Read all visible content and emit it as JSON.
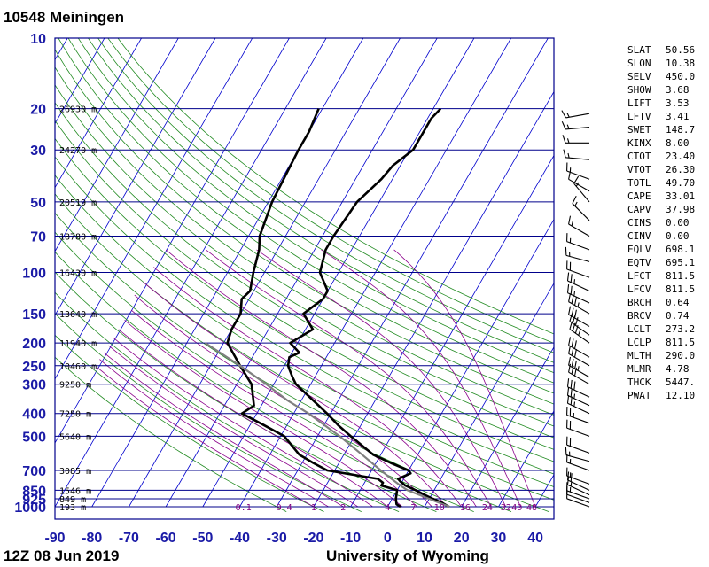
{
  "header": {
    "station": "10548  Meiningen"
  },
  "footer": {
    "time": "12Z 08 Jun 2019",
    "source": "University of Wyoming"
  },
  "indices": [
    {
      "k": "SLAT",
      "v": "50.56"
    },
    {
      "k": "SLON",
      "v": "10.38"
    },
    {
      "k": "SELV",
      "v": "450.0"
    },
    {
      "k": "SHOW",
      "v": "3.68"
    },
    {
      "k": "LIFT",
      "v": "3.53"
    },
    {
      "k": "LFTV",
      "v": "3.41"
    },
    {
      "k": "SWET",
      "v": "148.7"
    },
    {
      "k": "KINX",
      "v": "8.00"
    },
    {
      "k": "CTOT",
      "v": "23.40"
    },
    {
      "k": "VTOT",
      "v": "26.30"
    },
    {
      "k": "TOTL",
      "v": "49.70"
    },
    {
      "k": "CAPE",
      "v": "33.01"
    },
    {
      "k": "CAPV",
      "v": "37.98"
    },
    {
      "k": "CINS",
      "v": "0.00"
    },
    {
      "k": "CINV",
      "v": "0.00"
    },
    {
      "k": "EQLV",
      "v": "698.1"
    },
    {
      "k": "EQTV",
      "v": "695.1"
    },
    {
      "k": "LFCT",
      "v": "811.5"
    },
    {
      "k": "LFCV",
      "v": "811.5"
    },
    {
      "k": "BRCH",
      "v": "0.64"
    },
    {
      "k": "BRCV",
      "v": "0.74"
    },
    {
      "k": "LCLT",
      "v": "273.2"
    },
    {
      "k": "LCLP",
      "v": "811.5"
    },
    {
      "k": "MLTH",
      "v": "290.0"
    },
    {
      "k": "MLMR",
      "v": "4.78"
    },
    {
      "k": "THCK",
      "v": "5447."
    },
    {
      "k": "PWAT",
      "v": "12.10"
    }
  ],
  "colors": {
    "grid": "#00008b",
    "isotherm": "#0000cd",
    "dry_adiabat": "#228b22",
    "moist_adiabat": "#8b008b",
    "parcel": "#808080",
    "profile": "#000000"
  },
  "chart_data": {
    "type": "line",
    "title": "",
    "xlabel": "",
    "ylabel": "",
    "xlim": [
      -90,
      45
    ],
    "ylim": [
      1000,
      10
    ],
    "y_scale": "log",
    "x_ticks": [
      -90,
      -80,
      -70,
      -60,
      -50,
      -40,
      -30,
      -20,
      -10,
      0,
      10,
      20,
      30,
      40
    ],
    "x_tick_labels": [
      "-90",
      "-80",
      "-70",
      "-60",
      "-50",
      "-40",
      "-30",
      "-20",
      "-10",
      "0",
      "10",
      "20",
      "30",
      "40"
    ],
    "pressure_levels": [
      10,
      20,
      30,
      50,
      70,
      100,
      150,
      200,
      250,
      300,
      400,
      500,
      700,
      850,
      925,
      1000
    ],
    "pressure_labels": [
      "10",
      "20",
      "30",
      "50",
      "70",
      "100",
      "150",
      "200",
      "250",
      "300",
      "400",
      "500",
      "700",
      "850",
      "925",
      "1000"
    ],
    "height_labels": [
      {
        "p": 20,
        "label": "26930 m"
      },
      {
        "p": 30,
        "label": "24270 m"
      },
      {
        "p": 50,
        "label": "20519 m"
      },
      {
        "p": 70,
        "label": "18780 m"
      },
      {
        "p": 100,
        "label": "16430 m"
      },
      {
        "p": 150,
        "label": "13640 m"
      },
      {
        "p": 200,
        "label": "11940 m"
      },
      {
        "p": 250,
        "label": "10460 m"
      },
      {
        "p": 300,
        "label": "9250 m"
      },
      {
        "p": 400,
        "label": "7250 m"
      },
      {
        "p": 500,
        "label": "5640 m"
      },
      {
        "p": 700,
        "label": "3085 m"
      },
      {
        "p": 850,
        "label": "1546 m"
      },
      {
        "p": 925,
        "label": "849 m"
      },
      {
        "p": 1000,
        "label": "193 m"
      }
    ],
    "mixing_ratio_labels": [
      {
        "t": -39,
        "label": "0.1"
      },
      {
        "t": -28,
        "label": "0.4"
      },
      {
        "t": -20,
        "label": "1"
      },
      {
        "t": -12,
        "label": "2"
      },
      {
        "t": 0,
        "label": "4"
      },
      {
        "t": 7,
        "label": "7"
      },
      {
        "t": 14,
        "label": "10"
      },
      {
        "t": 21,
        "label": "16"
      },
      {
        "t": 27,
        "label": "24"
      },
      {
        "t": 32,
        "label": "32"
      },
      {
        "t": 35,
        "label": "40"
      },
      {
        "t": 39,
        "label": "48"
      }
    ],
    "series": [
      {
        "role": "temperature",
        "points": [
          {
            "p": 1000,
            "t": 16.6
          },
          {
            "p": 975,
            "t": 15
          },
          {
            "p": 960,
            "t": 14
          },
          {
            "p": 925,
            "t": 11
          },
          {
            "p": 900,
            "t": 9
          },
          {
            "p": 875,
            "t": 7
          },
          {
            "p": 850,
            "t": 5
          },
          {
            "p": 812,
            "t": 1.5
          },
          {
            "p": 780,
            "t": -0.5
          },
          {
            "p": 760,
            "t": -1.5
          },
          {
            "p": 720,
            "t": 1
          },
          {
            "p": 700,
            "t": 0
          },
          {
            "p": 650,
            "t": -6
          },
          {
            "p": 600,
            "t": -12
          },
          {
            "p": 500,
            "t": -21
          },
          {
            "p": 450,
            "t": -26
          },
          {
            "p": 400,
            "t": -31
          },
          {
            "p": 350,
            "t": -37
          },
          {
            "p": 300,
            "t": -44
          },
          {
            "p": 280,
            "t": -46
          },
          {
            "p": 260,
            "t": -48
          },
          {
            "p": 250,
            "t": -49
          },
          {
            "p": 230,
            "t": -50
          },
          {
            "p": 220,
            "t": -48
          },
          {
            "p": 200,
            "t": -52
          },
          {
            "p": 175,
            "t": -48
          },
          {
            "p": 150,
            "t": -53
          },
          {
            "p": 130,
            "t": -50
          },
          {
            "p": 120,
            "t": -50
          },
          {
            "p": 100,
            "t": -55
          },
          {
            "p": 80,
            "t": -57
          },
          {
            "p": 70,
            "t": -57
          },
          {
            "p": 50,
            "t": -56
          },
          {
            "p": 40,
            "t": -53
          },
          {
            "p": 35,
            "t": -52
          },
          {
            "p": 30,
            "t": -49
          },
          {
            "p": 25,
            "t": -49
          },
          {
            "p": 22,
            "t": -49
          },
          {
            "p": 20,
            "t": -48
          }
        ]
      },
      {
        "role": "dewpoint",
        "points": [
          {
            "p": 1000,
            "t": 3.5
          },
          {
            "p": 975,
            "t": 2
          },
          {
            "p": 925,
            "t": 1
          },
          {
            "p": 850,
            "t": 0
          },
          {
            "p": 812,
            "t": -5
          },
          {
            "p": 790,
            "t": -5
          },
          {
            "p": 760,
            "t": -7
          },
          {
            "p": 700,
            "t": -22
          },
          {
            "p": 650,
            "t": -27
          },
          {
            "p": 600,
            "t": -32
          },
          {
            "p": 500,
            "t": -39
          },
          {
            "p": 450,
            "t": -46
          },
          {
            "p": 400,
            "t": -54
          },
          {
            "p": 370,
            "t": -52
          },
          {
            "p": 300,
            "t": -56
          },
          {
            "p": 250,
            "t": -62
          },
          {
            "p": 200,
            "t": -69
          },
          {
            "p": 175,
            "t": -70
          },
          {
            "p": 150,
            "t": -70
          },
          {
            "p": 130,
            "t": -72
          },
          {
            "p": 120,
            "t": -71
          },
          {
            "p": 100,
            "t": -73
          },
          {
            "p": 80,
            "t": -75
          },
          {
            "p": 70,
            "t": -77
          },
          {
            "p": 50,
            "t": -79
          },
          {
            "p": 30,
            "t": -80
          },
          {
            "p": 25,
            "t": -80
          },
          {
            "p": 20,
            "t": -81
          }
        ]
      },
      {
        "role": "parcel",
        "points": [
          {
            "p": 1000,
            "t": 16.8
          },
          {
            "p": 950,
            "t": 12.3
          },
          {
            "p": 900,
            "t": 7.7
          },
          {
            "p": 850,
            "t": 2.8
          },
          {
            "p": 811.5,
            "t": 0.1
          },
          {
            "p": 750,
            "t": -4
          },
          {
            "p": 700,
            "t": -7.5
          },
          {
            "p": 600,
            "t": -15
          },
          {
            "p": 500,
            "t": -24
          },
          {
            "p": 400,
            "t": -36
          },
          {
            "p": 350,
            "t": -44
          },
          {
            "p": 300,
            "t": -52
          },
          {
            "p": 250,
            "t": -62
          },
          {
            "p": 200,
            "t": -75
          }
        ]
      }
    ],
    "wind_barbs": [
      {
        "p": 1000,
        "dir": 290,
        "spd": 10
      },
      {
        "p": 960,
        "dir": 290,
        "spd": 10
      },
      {
        "p": 925,
        "dir": 290,
        "spd": 15
      },
      {
        "p": 890,
        "dir": 295,
        "spd": 15
      },
      {
        "p": 850,
        "dir": 295,
        "spd": 20
      },
      {
        "p": 800,
        "dir": 290,
        "spd": 15
      },
      {
        "p": 700,
        "dir": 290,
        "spd": 15
      },
      {
        "p": 640,
        "dir": 285,
        "spd": 15
      },
      {
        "p": 590,
        "dir": 290,
        "spd": 20
      },
      {
        "p": 500,
        "dir": 290,
        "spd": 20
      },
      {
        "p": 440,
        "dir": 290,
        "spd": 25
      },
      {
        "p": 400,
        "dir": 295,
        "spd": 25
      },
      {
        "p": 370,
        "dir": 295,
        "spd": 25
      },
      {
        "p": 340,
        "dir": 295,
        "spd": 30
      },
      {
        "p": 300,
        "dir": 300,
        "spd": 30
      },
      {
        "p": 280,
        "dir": 300,
        "spd": 35
      },
      {
        "p": 250,
        "dir": 300,
        "spd": 30
      },
      {
        "p": 230,
        "dir": 300,
        "spd": 30
      },
      {
        "p": 200,
        "dir": 305,
        "spd": 35
      },
      {
        "p": 185,
        "dir": 305,
        "spd": 30
      },
      {
        "p": 170,
        "dir": 300,
        "spd": 30
      },
      {
        "p": 150,
        "dir": 300,
        "spd": 35
      },
      {
        "p": 135,
        "dir": 295,
        "spd": 25
      },
      {
        "p": 120,
        "dir": 295,
        "spd": 25
      },
      {
        "p": 105,
        "dir": 290,
        "spd": 20
      },
      {
        "p": 90,
        "dir": 285,
        "spd": 15
      },
      {
        "p": 80,
        "dir": 290,
        "spd": 15
      },
      {
        "p": 70,
        "dir": 300,
        "spd": 15
      },
      {
        "p": 60,
        "dir": 315,
        "spd": 15
      },
      {
        "p": 50,
        "dir": 320,
        "spd": 15
      },
      {
        "p": 45,
        "dir": 300,
        "spd": 10
      },
      {
        "p": 40,
        "dir": 290,
        "spd": 15
      },
      {
        "p": 33,
        "dir": 275,
        "spd": 15
      },
      {
        "p": 28,
        "dir": 270,
        "spd": 15
      },
      {
        "p": 24,
        "dir": 265,
        "spd": 15
      },
      {
        "p": 21,
        "dir": 260,
        "spd": 15
      }
    ]
  }
}
